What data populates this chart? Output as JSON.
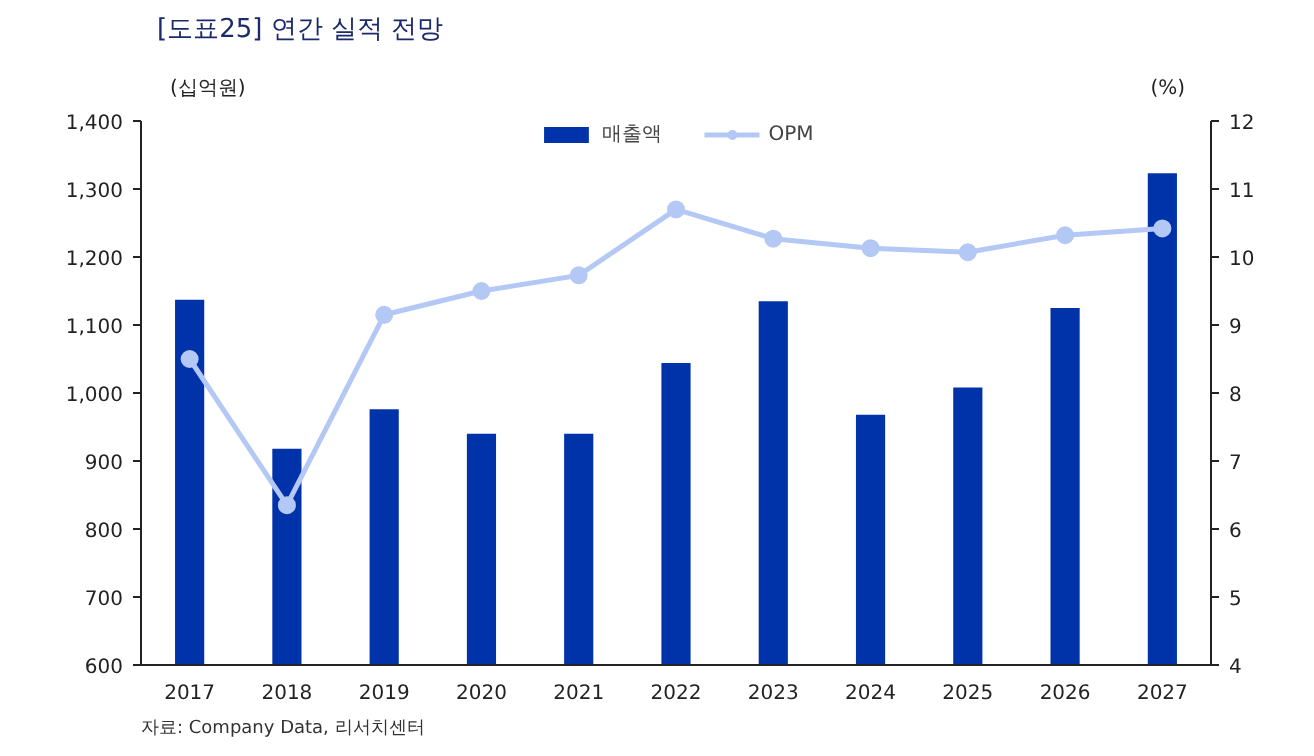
{
  "chart_data": {
    "type": "bar",
    "title": "[도표25] 연간 실적 전망",
    "ylabel": "(십억원)",
    "y2label": "(%)",
    "categories": [
      "2017",
      "2018",
      "2019",
      "2020",
      "2021",
      "2022",
      "2023",
      "2024",
      "2025",
      "2026",
      "2027"
    ],
    "series": [
      {
        "name": "매출액",
        "color": "#0033aa",
        "values": [
          1137,
          918,
          976,
          940,
          940,
          1044,
          1135,
          968,
          1008,
          1125,
          1323
        ]
      },
      {
        "name": "OPM",
        "type": "line",
        "axis": "y2",
        "color": "#b4c8f5",
        "values": [
          8.5,
          6.35,
          9.15,
          9.5,
          9.73,
          10.7,
          10.27,
          10.13,
          10.07,
          10.32,
          10.42
        ]
      }
    ],
    "ylim": [
      600,
      1400
    ],
    "yticks": [
      {
        "value": 600,
        "label": "600"
      },
      {
        "value": 700,
        "label": "700"
      },
      {
        "value": 800,
        "label": "800"
      },
      {
        "value": 900,
        "label": "900"
      },
      {
        "value": 1000,
        "label": "1,000"
      },
      {
        "value": 1100,
        "label": "1,100"
      },
      {
        "value": 1200,
        "label": "1,200"
      },
      {
        "value": 1300,
        "label": "1,300"
      },
      {
        "value": 1400,
        "label": "1,400"
      }
    ],
    "y2lim": [
      4,
      12
    ],
    "y2ticks": [
      4,
      5,
      6,
      7,
      8,
      9,
      10,
      11,
      12
    ],
    "marker": "circle",
    "grid": false,
    "legend": "top",
    "annotations": [
      "자료: Company Data, 리서치센터"
    ]
  }
}
